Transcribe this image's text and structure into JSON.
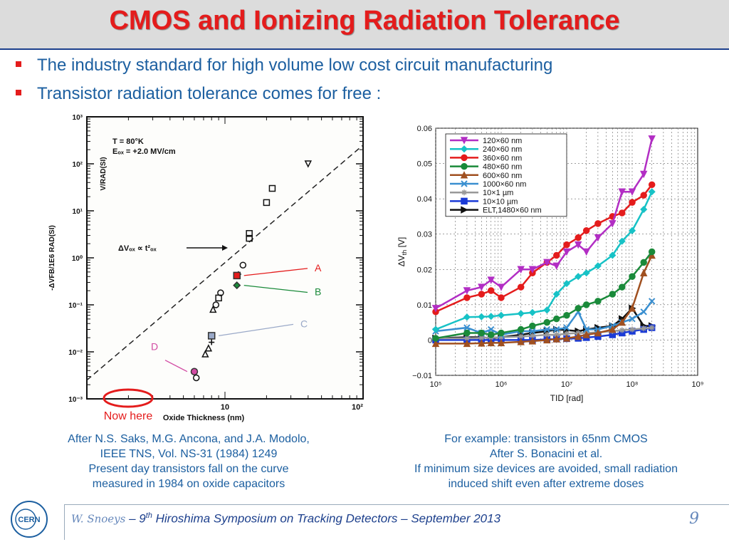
{
  "title": "CMOS and Ionizing Radiation Tolerance",
  "bullets": [
    "The industry standard for high volume low cost circuit manufacturing",
    "Transistor radiation tolerance comes for free :"
  ],
  "left_caption": [
    "After N.S. Saks, M.G. Ancona, and J.A. Modolo,",
    "IEEE TNS, Vol. NS-31 (1984) 1249",
    "Present day transistors fall on the curve",
    "measured in 1984 on oxide capacitors"
  ],
  "right_caption": [
    "For example:  transistors in 65nm CMOS",
    "After S. Bonacini et al.",
    "If minimum size devices are avoided, small radiation",
    "induced shift even after extreme doses"
  ],
  "footer": {
    "author": "W. Snoeys",
    "sep": " – 9",
    "sup": "th",
    "rest": " Hiroshima Symposium on Tracking Detectors – September 2013",
    "page": "9"
  },
  "logo_text": "CERN",
  "colors": {
    "title": "#e41c1c",
    "text": "#1c5fa0",
    "title_bar": "#dcdcdc"
  },
  "chart_data": [
    {
      "type": "scatter",
      "xscale": "log",
      "yscale": "log",
      "xlim": [
        1,
        100
      ],
      "ylim": [
        0.001,
        1000
      ],
      "xlabel": "Oxide  Thickness  (nm)",
      "ylabel": "-ΔVFB/1E6 RAD(SI)",
      "ylabel2": "V/RAD(SI)",
      "xticks": [
        "10",
        "10²"
      ],
      "yticks": [
        "10³",
        "10²",
        "10¹",
        "10⁰",
        "10⁻¹",
        "10⁻²",
        "10⁻³"
      ],
      "annotations": [
        "T = 80°K",
        "Eₒₓ = +2.0 MV/cm",
        "ΔVₒₓ ∝ t²ₒₓ"
      ],
      "fit_line": {
        "x": [
          1,
          100
        ],
        "y": [
          0.0025,
          250
        ]
      },
      "points": [
        {
          "x": 40,
          "y": 100,
          "marker": "triangle-down"
        },
        {
          "x": 22,
          "y": 30,
          "marker": "square"
        },
        {
          "x": 20,
          "y": 15,
          "marker": "square"
        },
        {
          "x": 15,
          "y": 2.6,
          "marker": "square"
        },
        {
          "x": 15,
          "y": 3.3,
          "marker": "square"
        },
        {
          "x": 13.5,
          "y": 0.7,
          "marker": "circle"
        },
        {
          "x": 12.5,
          "y": 0.45,
          "marker": "cross"
        },
        {
          "x": 9.3,
          "y": 0.18,
          "marker": "circle"
        },
        {
          "x": 9,
          "y": 0.14,
          "marker": "square"
        },
        {
          "x": 8.6,
          "y": 0.1,
          "marker": "circle"
        },
        {
          "x": 8.2,
          "y": 0.08,
          "marker": "triangle"
        },
        {
          "x": 8,
          "y": 0.016,
          "marker": "cross"
        },
        {
          "x": 7.6,
          "y": 0.012,
          "marker": "triangle"
        },
        {
          "x": 7.2,
          "y": 0.009,
          "marker": "triangle"
        },
        {
          "x": 6.2,
          "y": 0.0028,
          "marker": "circle"
        }
      ],
      "highlights": [
        {
          "label": "A",
          "x": 12.2,
          "y": 0.42,
          "color": "#e41c1c"
        },
        {
          "label": "B",
          "x": 12.2,
          "y": 0.26,
          "color": "#1a8a3a"
        },
        {
          "label": "C",
          "x": 8.0,
          "y": 0.022,
          "color": "#9aa9c8"
        },
        {
          "label": "D",
          "x": 6.0,
          "y": 0.0038,
          "color": "#d24ba3"
        }
      ],
      "callout": "Now here"
    },
    {
      "type": "line",
      "xscale": "log",
      "xlim": [
        100000,
        1000000000
      ],
      "ylim": [
        -0.01,
        0.06
      ],
      "xlabel": "TID [rad]",
      "ylabel": "ΔV",
      "ylabel_sub": "th",
      "ylabel_unit": " [V]",
      "xticks": [
        "10⁵",
        "10⁶",
        "10⁷",
        "10⁸",
        "10⁹"
      ],
      "yticks": [
        "0.06",
        "0.05",
        "0.04",
        "0.03",
        "0.02",
        "0.01",
        "0",
        "−0.01"
      ],
      "legend": "top-left",
      "series": [
        {
          "name": "120×60 nm",
          "color": "#b22ec4",
          "marker": "triangle-down",
          "x": [
            100000,
            300000,
            500000,
            700000,
            1000000,
            2000000,
            3000000,
            5000000,
            7000000,
            10000000,
            15000000,
            20000000,
            30000000,
            50000000,
            70000000,
            100000000,
            150000000,
            200000000
          ],
          "y": [
            0.009,
            0.014,
            0.015,
            0.017,
            0.015,
            0.02,
            0.02,
            0.022,
            0.021,
            0.025,
            0.027,
            0.025,
            0.029,
            0.033,
            0.042,
            0.042,
            0.047,
            0.057
          ]
        },
        {
          "name": "240×60 nm",
          "color": "#17c2c6",
          "marker": "diamond",
          "x": [
            100000,
            300000,
            500000,
            700000,
            1000000,
            2000000,
            3000000,
            5000000,
            7000000,
            10000000,
            15000000,
            20000000,
            30000000,
            50000000,
            70000000,
            100000000,
            150000000,
            200000000
          ],
          "y": [
            0.003,
            0.0065,
            0.0066,
            0.0067,
            0.007,
            0.0075,
            0.0078,
            0.0085,
            0.013,
            0.016,
            0.018,
            0.019,
            0.021,
            0.024,
            0.028,
            0.031,
            0.037,
            0.042
          ]
        },
        {
          "name": "360×60 nm",
          "color": "#e41c1c",
          "marker": "circle",
          "x": [
            100000,
            300000,
            500000,
            700000,
            1000000,
            2000000,
            3000000,
            5000000,
            7000000,
            10000000,
            15000000,
            20000000,
            30000000,
            50000000,
            70000000,
            100000000,
            150000000,
            200000000
          ],
          "y": [
            0.008,
            0.012,
            0.013,
            0.014,
            0.012,
            0.015,
            0.019,
            0.022,
            0.024,
            0.027,
            0.029,
            0.031,
            0.033,
            0.035,
            0.036,
            0.039,
            0.041,
            0.044
          ]
        },
        {
          "name": "480×60 nm",
          "color": "#1a8a3a",
          "marker": "circle",
          "x": [
            100000,
            300000,
            500000,
            700000,
            1000000,
            2000000,
            3000000,
            5000000,
            7000000,
            10000000,
            15000000,
            20000000,
            30000000,
            50000000,
            70000000,
            100000000,
            150000000,
            200000000
          ],
          "y": [
            0.0005,
            0.002,
            0.002,
            0.0015,
            0.002,
            0.003,
            0.004,
            0.005,
            0.006,
            0.007,
            0.009,
            0.01,
            0.011,
            0.013,
            0.015,
            0.018,
            0.022,
            0.025
          ]
        },
        {
          "name": "600×60 nm",
          "color": "#a05020",
          "marker": "triangle",
          "x": [
            100000,
            300000,
            500000,
            700000,
            1000000,
            2000000,
            3000000,
            5000000,
            7000000,
            10000000,
            15000000,
            20000000,
            30000000,
            50000000,
            70000000,
            100000000,
            150000000,
            200000000
          ],
          "y": [
            -0.001,
            -0.001,
            -0.0009,
            -0.0008,
            -0.0008,
            -0.0005,
            -0.0003,
            0,
            0.0003,
            0.0005,
            0.001,
            0.0015,
            0.002,
            0.003,
            0.005,
            0.009,
            0.019,
            0.024
          ]
        },
        {
          "name": "1000×60 nm",
          "color": "#3a8fd0",
          "marker": "x",
          "x": [
            100000,
            300000,
            500000,
            700000,
            1000000,
            2000000,
            3000000,
            5000000,
            7000000,
            10000000,
            15000000,
            20000000,
            30000000,
            50000000,
            70000000,
            100000000,
            150000000,
            200000000
          ],
          "y": [
            0.0025,
            0.0035,
            0.002,
            0.003,
            0.0015,
            0.0025,
            0.0025,
            0.003,
            0.003,
            0.0035,
            0.008,
            0.003,
            0.003,
            0.004,
            0.005,
            0.006,
            0.008,
            0.011
          ]
        },
        {
          "name": "10×1 µm",
          "color": "#999999",
          "marker": "star",
          "x": [
            100000,
            300000,
            500000,
            700000,
            1000000,
            2000000,
            3000000,
            5000000,
            7000000,
            10000000,
            15000000,
            20000000,
            30000000,
            50000000,
            70000000,
            100000000,
            150000000,
            200000000
          ],
          "y": [
            0.0005,
            0.0005,
            0.0006,
            0.0007,
            0.0008,
            0.001,
            0.0012,
            0.0015,
            0.0015,
            0.0018,
            0.002,
            0.002,
            0.0022,
            0.0025,
            0.0028,
            0.003,
            0.0033,
            0.0035
          ]
        },
        {
          "name": "10×10 µm",
          "color": "#1a3ad6",
          "marker": "square",
          "x": [
            100000,
            300000,
            500000,
            700000,
            1000000,
            2000000,
            3000000,
            5000000,
            7000000,
            10000000,
            15000000,
            20000000,
            30000000,
            50000000,
            70000000,
            100000000,
            150000000,
            200000000
          ],
          "y": [
            0,
            0,
            0,
            0,
            0,
            0,
            0,
            0.0002,
            0.0003,
            0.0004,
            0.0005,
            0.0007,
            0.001,
            0.0015,
            0.002,
            0.0025,
            0.003,
            0.0035
          ]
        },
        {
          "name": "ELT,1480×60 nm",
          "color": "#111111",
          "marker": "triangle-right",
          "x": [
            100000,
            300000,
            500000,
            700000,
            1000000,
            2000000,
            3000000,
            5000000,
            7000000,
            10000000,
            15000000,
            20000000,
            30000000,
            50000000,
            70000000,
            100000000,
            150000000,
            200000000
          ],
          "y": [
            0.0005,
            0.0008,
            0.0008,
            0.0005,
            0.0008,
            0.0015,
            0.002,
            0.0025,
            0.003,
            0.0028,
            0.0025,
            0.003,
            0.0035,
            0.004,
            0.006,
            0.009,
            0.004,
            0.004
          ]
        }
      ]
    }
  ]
}
